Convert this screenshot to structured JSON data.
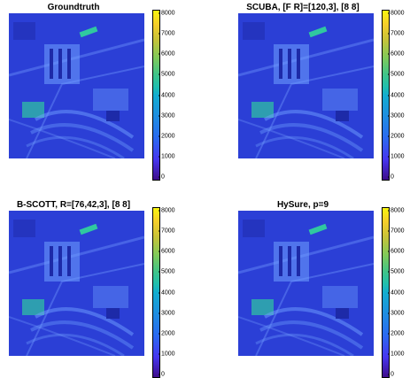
{
  "figure": {
    "panels": [
      {
        "id": "p1",
        "title": "Groundtruth"
      },
      {
        "id": "p2",
        "title": "SCUBA, [F R]=[120,3], [8 8]"
      },
      {
        "id": "p3",
        "title": "B-SCOTT, R=[76,42,3], [8 8]"
      },
      {
        "id": "p4",
        "title": "HySure, p=9"
      }
    ]
  },
  "chart_data": [
    {
      "type": "heatmap",
      "title": "Groundtruth",
      "colorbar": {
        "min": 0,
        "max": 8000,
        "ticks": [
          0,
          1000,
          2000,
          3000,
          4000,
          5000,
          6000,
          7000,
          8000
        ],
        "colormap": "parula"
      }
    },
    {
      "type": "heatmap",
      "title": "SCUBA, [F R]=[120,3], [8 8]",
      "colorbar": {
        "min": 0,
        "max": 8000,
        "ticks": [
          0,
          1000,
          2000,
          3000,
          4000,
          5000,
          6000,
          7000,
          8000
        ],
        "colormap": "parula"
      }
    },
    {
      "type": "heatmap",
      "title": "B-SCOTT, R=[76,42,3], [8 8]",
      "colorbar": {
        "min": 0,
        "max": 8000,
        "ticks": [
          0,
          1000,
          2000,
          3000,
          4000,
          5000,
          6000,
          7000,
          8000
        ],
        "colormap": "parula"
      }
    },
    {
      "type": "heatmap",
      "title": "HySure, p=9",
      "colorbar": {
        "min": 0,
        "max": 8000,
        "ticks": [
          0,
          1000,
          2000,
          3000,
          4000,
          5000,
          6000,
          7000,
          8000
        ],
        "colormap": "parula"
      }
    }
  ],
  "colors": {
    "background": "#2b3fd6",
    "road": "#5a7cf0",
    "building": "#6fa0ff",
    "highlight": "#30c8a0",
    "dark": "#1d2aa8"
  }
}
